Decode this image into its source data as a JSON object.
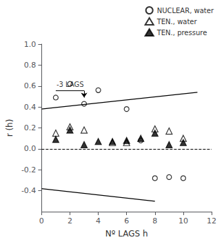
{
  "chart_data": {
    "type": "scatter",
    "xlabel": "Nº LAGS h",
    "ylabel": "r (h)",
    "xlim": [
      0,
      12
    ],
    "ylim": [
      -0.6,
      1.0
    ],
    "xticks": [
      0,
      2,
      4,
      6,
      8,
      10,
      12
    ],
    "yticks": [
      -0.4,
      -0.2,
      {
        "value": 0,
        "label": "0.0"
      },
      0.2,
      0.4,
      0.6,
      0.8,
      {
        "value": 1,
        "label": "1.0"
      }
    ],
    "grid": false,
    "legend": "upper right",
    "series": [
      {
        "name": "NUCLEAR, water",
        "type": "scatter",
        "marker": "circle_open",
        "color": "#000000",
        "x": [
          1,
          2,
          3,
          4,
          6,
          7,
          8,
          9,
          10
        ],
        "values": [
          0.49,
          0.62,
          0.43,
          0.56,
          0.38,
          0.08,
          -0.28,
          -0.27,
          -0.28
        ]
      },
      {
        "name": "TEN., water",
        "type": "scatter",
        "marker": "triangle_open",
        "color": "#000000",
        "x": [
          1,
          2,
          3,
          5,
          6,
          8,
          9,
          10
        ],
        "values": [
          0.15,
          0.21,
          0.18,
          0.06,
          0.06,
          0.19,
          0.17,
          0.1
        ]
      },
      {
        "name": "TEN., pressure",
        "type": "scatter",
        "marker": "triangle_filled",
        "color": "#000000",
        "x": [
          1,
          2,
          3,
          4,
          5,
          6,
          7,
          8,
          9,
          10
        ],
        "values": [
          0.09,
          0.18,
          0.04,
          0.07,
          0.07,
          0.08,
          0.1,
          0.15,
          0.04,
          0.06
        ]
      },
      {
        "type": "line",
        "line_style": "solid",
        "color": "#000000",
        "x": [
          0,
          11
        ],
        "values": [
          0.38,
          0.54
        ]
      },
      {
        "type": "line",
        "line_style": "solid",
        "color": "#000000",
        "x": [
          0,
          8
        ],
        "values": [
          -0.38,
          -0.5
        ]
      }
    ],
    "annotations": [
      {
        "type": "hline",
        "y": 0.0,
        "line_style": "dashed",
        "color": "#000000"
      },
      {
        "type": "arrow",
        "x": [
          3,
          3
        ],
        "y": [
          0.555,
          0.49
        ],
        "color": "#000000"
      },
      {
        "type": "line",
        "x": [
          1,
          3
        ],
        "y": [
          0.555,
          0.555
        ],
        "color": "#000000"
      },
      {
        "type": "text",
        "text": "-3 LAGS",
        "x": 1.05,
        "y": 0.585,
        "color": "#000000"
      }
    ]
  }
}
